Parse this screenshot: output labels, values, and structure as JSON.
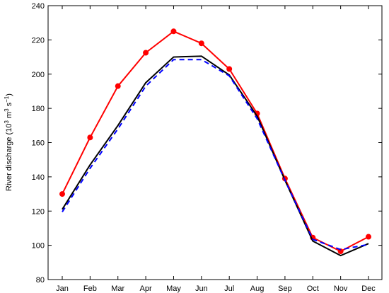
{
  "chart_data": {
    "type": "line",
    "title": "",
    "xlabel": "",
    "ylabel": "River discharge (10³ m³ s⁻¹)",
    "ylabel_parts": {
      "prefix": "River discharge (10",
      "exp1": "3",
      "mid": " m",
      "exp2": "3",
      "mid2": " s",
      "exp3": "−1",
      "suffix": ")"
    },
    "categories": [
      "Jan",
      "Feb",
      "Mar",
      "Apr",
      "May",
      "Jun",
      "Jul",
      "Aug",
      "Sep",
      "Oct",
      "Nov",
      "Dec"
    ],
    "ylim": [
      80,
      240
    ],
    "yticks": [
      80,
      100,
      120,
      140,
      160,
      180,
      200,
      220,
      240
    ],
    "grid": false,
    "series": [
      {
        "color": "#ff0000",
        "style": "solid",
        "marker": "circle",
        "values": [
          130,
          163,
          193,
          212.5,
          225,
          218,
          203,
          177,
          139,
          104.5,
          96.5,
          105
        ]
      },
      {
        "color": "#000000",
        "style": "solid",
        "marker": "none",
        "values": [
          121,
          147,
          170,
          195,
          210,
          210.5,
          199.5,
          175.5,
          138,
          102.5,
          94,
          101
        ]
      },
      {
        "color": "#0000ff",
        "style": "dashed",
        "marker": "none",
        "values": [
          119.5,
          145,
          168,
          193,
          208.5,
          208.5,
          199,
          174,
          138,
          103.5,
          97.5,
          100.5
        ]
      }
    ]
  }
}
